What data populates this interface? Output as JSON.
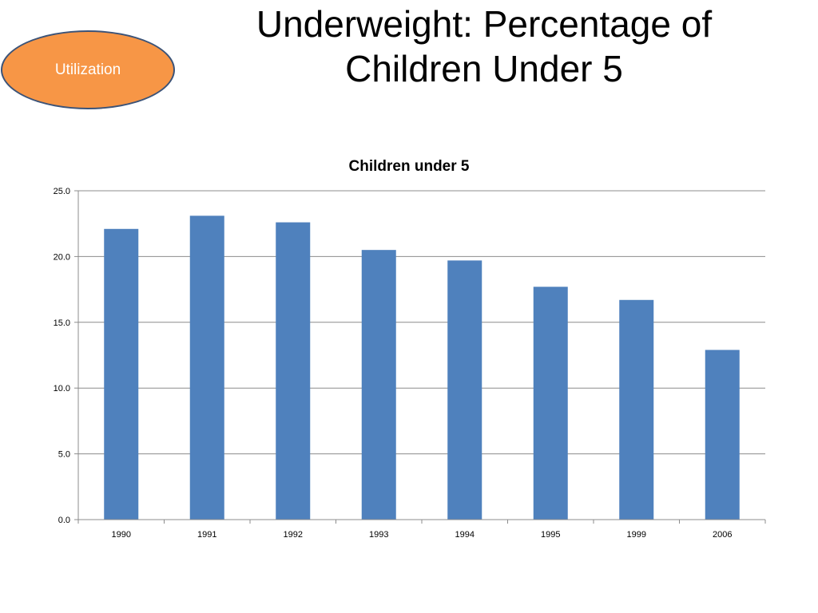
{
  "badge": {
    "label": "Utilization",
    "fill": "#f79646",
    "border": "#3b5378"
  },
  "slide": {
    "title_line1": "Underweight: Percentage of",
    "title_line2": "Children Under 5"
  },
  "chart_data": {
    "type": "bar",
    "title": "Children under 5",
    "categories": [
      "1990",
      "1991",
      "1992",
      "1993",
      "1994",
      "1995",
      "1999",
      "2006"
    ],
    "values": [
      22.1,
      23.1,
      22.6,
      20.5,
      19.7,
      17.7,
      16.7,
      12.9
    ],
    "ylim": [
      0,
      25
    ],
    "yticks": [
      "0.0",
      "5.0",
      "10.0",
      "15.0",
      "20.0",
      "25.0"
    ],
    "xlabel": "",
    "ylabel": "",
    "grid": true,
    "bar_color": "#4f81bd"
  }
}
